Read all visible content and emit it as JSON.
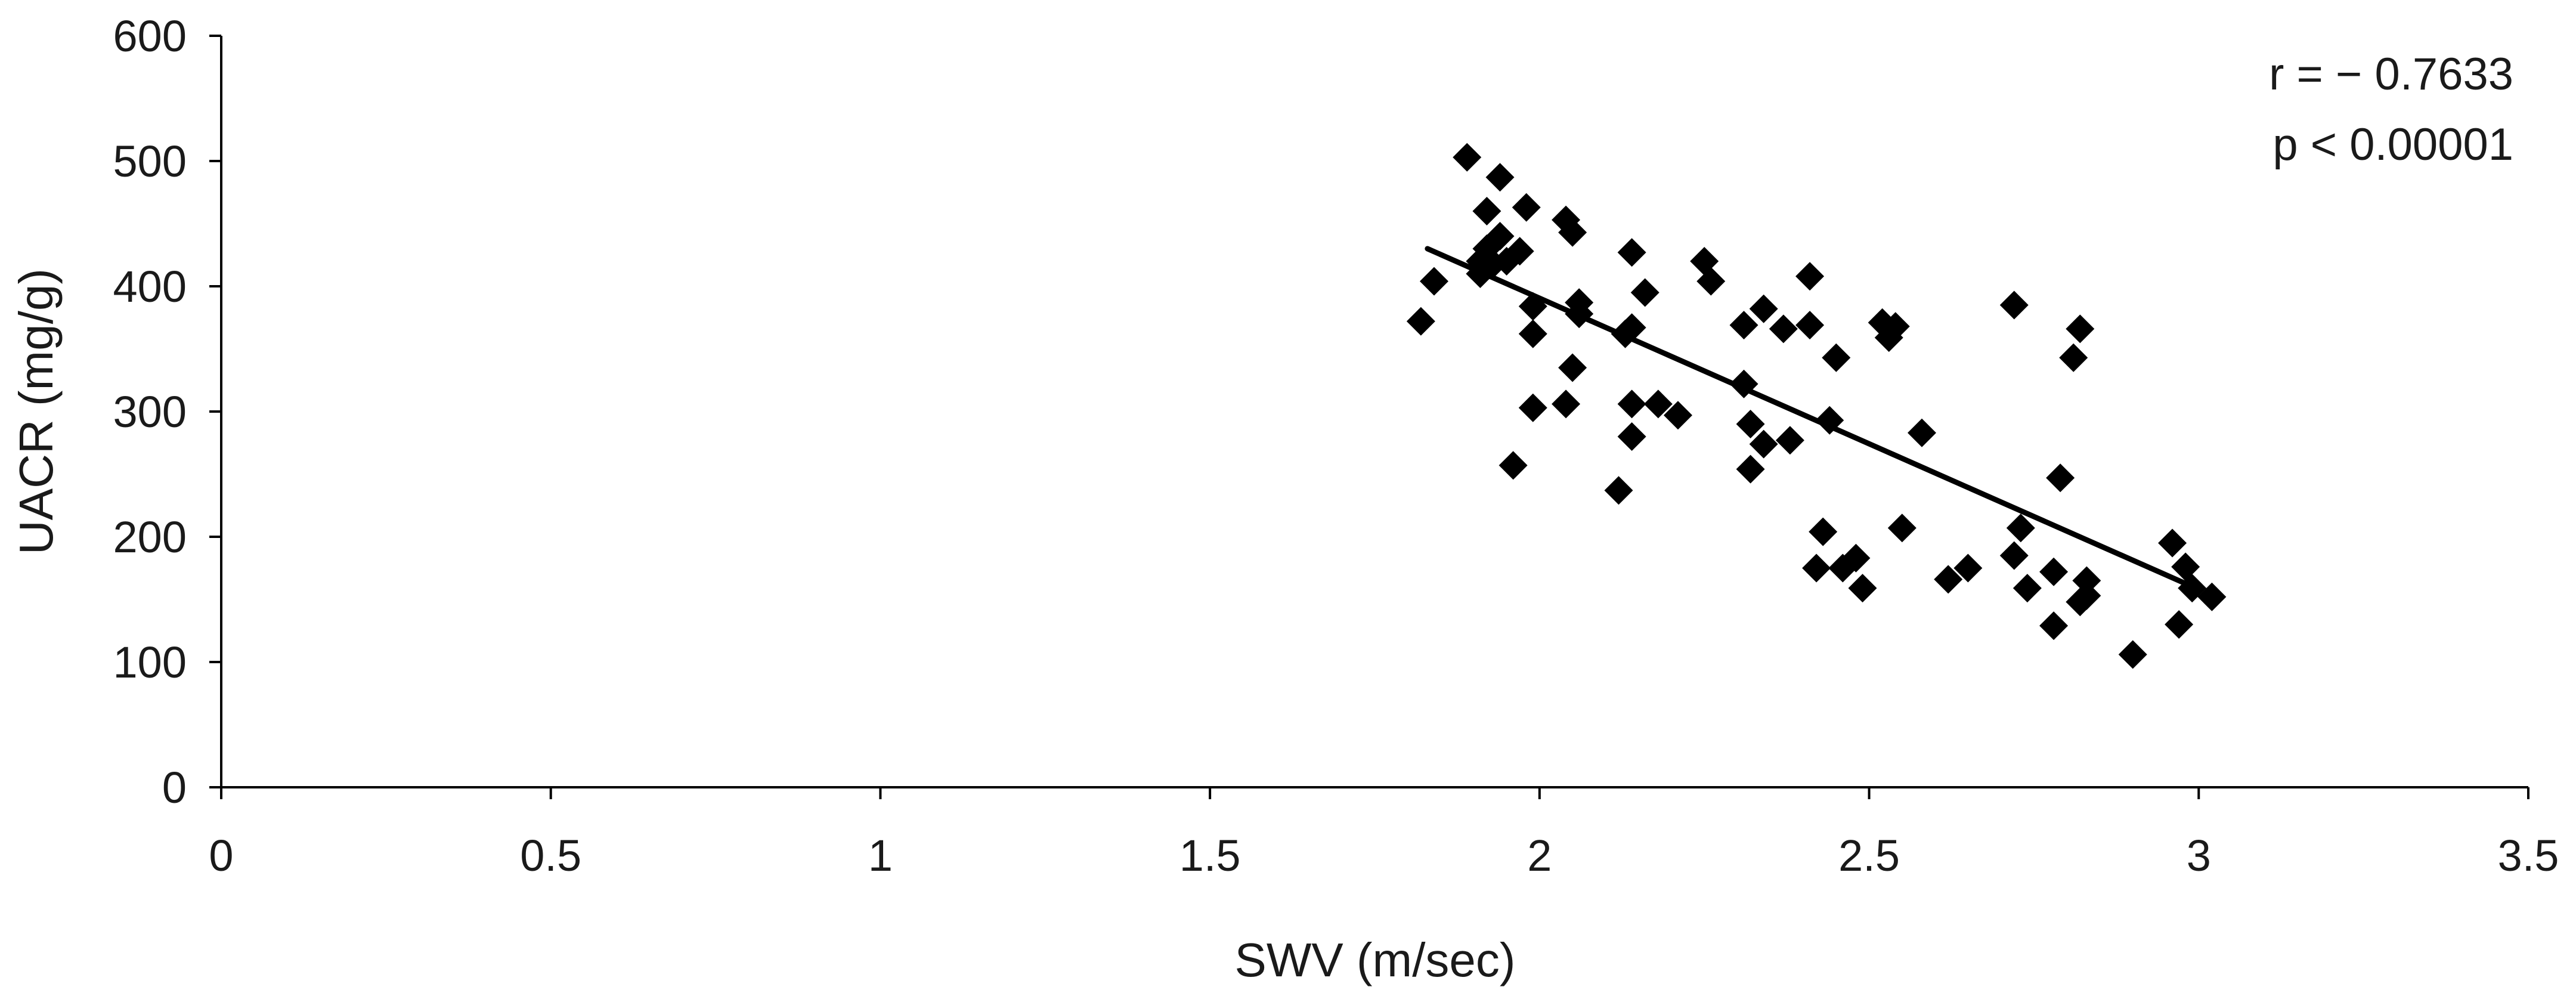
{
  "chart_data": {
    "type": "scatter",
    "xlabel": "SWV (m/sec)",
    "ylabel": "UACR (mg/g)",
    "xlim": [
      0,
      3.5
    ],
    "ylim": [
      0,
      600
    ],
    "xticks": [
      {
        "value": 0,
        "label": "0"
      },
      {
        "value": 0.5,
        "label": "0.5"
      },
      {
        "value": 1,
        "label": "1"
      },
      {
        "value": 1.5,
        "label": "1.5"
      },
      {
        "value": 2,
        "label": "2"
      },
      {
        "value": 2.5,
        "label": "2.5"
      },
      {
        "value": 3,
        "label": "3"
      },
      {
        "value": 3.5,
        "label": "3.5"
      }
    ],
    "yticks": [
      {
        "value": 0,
        "label": "0"
      },
      {
        "value": 100,
        "label": "100"
      },
      {
        "value": 200,
        "label": "200"
      },
      {
        "value": 300,
        "label": "300"
      },
      {
        "value": 400,
        "label": "400"
      },
      {
        "value": 500,
        "label": "500"
      },
      {
        "value": 600,
        "label": "600"
      }
    ],
    "grid": false,
    "annotations": [
      "r = − 0.7633",
      "p < 0.00001"
    ],
    "marker": "diamond",
    "marker_color": "#000000",
    "trendline": {
      "x": [
        1.83,
        3.0
      ],
      "y": [
        430,
        158
      ],
      "color": "#000000"
    },
    "points": [
      [
        1.82,
        372
      ],
      [
        1.84,
        404
      ],
      [
        1.89,
        503
      ],
      [
        1.91,
        410
      ],
      [
        1.91,
        420
      ],
      [
        1.92,
        460
      ],
      [
        1.92,
        430
      ],
      [
        1.93,
        418
      ],
      [
        1.94,
        487
      ],
      [
        1.94,
        440
      ],
      [
        1.95,
        420
      ],
      [
        1.96,
        257
      ],
      [
        1.97,
        428
      ],
      [
        1.98,
        463
      ],
      [
        1.99,
        384
      ],
      [
        1.99,
        362
      ],
      [
        1.99,
        303
      ],
      [
        2.04,
        453
      ],
      [
        2.04,
        306
      ],
      [
        2.05,
        443
      ],
      [
        2.05,
        335
      ],
      [
        2.06,
        387
      ],
      [
        2.06,
        378
      ],
      [
        2.12,
        237
      ],
      [
        2.13,
        362
      ],
      [
        2.14,
        427
      ],
      [
        2.14,
        367
      ],
      [
        2.14,
        306
      ],
      [
        2.14,
        280
      ],
      [
        2.16,
        395
      ],
      [
        2.18,
        306
      ],
      [
        2.21,
        297
      ],
      [
        2.25,
        420
      ],
      [
        2.26,
        404
      ],
      [
        2.31,
        369
      ],
      [
        2.31,
        322
      ],
      [
        2.32,
        290
      ],
      [
        2.32,
        254
      ],
      [
        2.34,
        382
      ],
      [
        2.34,
        274
      ],
      [
        2.37,
        366
      ],
      [
        2.38,
        277
      ],
      [
        2.41,
        408
      ],
      [
        2.41,
        369
      ],
      [
        2.42,
        175
      ],
      [
        2.43,
        204
      ],
      [
        2.44,
        293
      ],
      [
        2.45,
        343
      ],
      [
        2.46,
        175
      ],
      [
        2.48,
        183
      ],
      [
        2.49,
        159
      ],
      [
        2.52,
        371
      ],
      [
        2.53,
        359
      ],
      [
        2.54,
        368
      ],
      [
        2.55,
        207
      ],
      [
        2.58,
        283
      ],
      [
        2.62,
        166
      ],
      [
        2.65,
        175
      ],
      [
        2.72,
        385
      ],
      [
        2.72,
        185
      ],
      [
        2.73,
        207
      ],
      [
        2.74,
        159
      ],
      [
        2.78,
        129
      ],
      [
        2.78,
        172
      ],
      [
        2.79,
        247
      ],
      [
        2.81,
        343
      ],
      [
        2.82,
        366
      ],
      [
        2.82,
        148
      ],
      [
        2.83,
        165
      ],
      [
        2.83,
        153
      ],
      [
        2.9,
        106
      ],
      [
        2.96,
        195
      ],
      [
        2.97,
        130
      ],
      [
        2.98,
        176
      ],
      [
        2.99,
        159
      ],
      [
        3.02,
        152
      ]
    ]
  }
}
